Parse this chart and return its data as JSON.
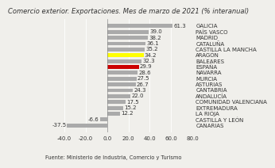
{
  "title": "Comercio exterior. Exportaciones. Mes de marzo de 2021 (% interanual)",
  "categories": [
    "GALICIA",
    "PAÍS VASCO",
    "MADRID",
    "CATALUÑA",
    "CASTILLA LA MANCHA",
    "ARAGÓN",
    "BALEARES",
    "ESPAÑA",
    "NAVARRA",
    "MURCIA",
    "ASTURIAS",
    "CANTABRIA",
    "ANDALUCÍA",
    "COMUNIDAD VALENCIANA",
    "EXTREMADURA",
    "LA RIOJA",
    "CASTILLA Y LEÓN",
    "CANARIAS"
  ],
  "values": [
    61.3,
    39.0,
    38.2,
    36.1,
    35.2,
    34.2,
    32.3,
    29.9,
    28.6,
    27.5,
    26.7,
    24.3,
    22.0,
    17.5,
    15.2,
    12.2,
    -6.6,
    -37.5
  ],
  "bar_colors": [
    "#aaaaaa",
    "#aaaaaa",
    "#aaaaaa",
    "#aaaaaa",
    "#aaaaaa",
    "#ffff00",
    "#aaaaaa",
    "#cc0000",
    "#aaaaaa",
    "#aaaaaa",
    "#aaaaaa",
    "#aaaaaa",
    "#aaaaaa",
    "#aaaaaa",
    "#aaaaaa",
    "#aaaaaa",
    "#aaaaaa",
    "#aaaaaa"
  ],
  "xlim": [
    -40.0,
    80.0
  ],
  "xticks": [
    -40.0,
    -20.0,
    0.0,
    20.0,
    40.0,
    60.0,
    80.0
  ],
  "source": "Fuente: Ministerio de Industria, Comercio y Turismo",
  "title_fontsize": 6.0,
  "label_fontsize": 5.0,
  "tick_fontsize": 5.0,
  "source_fontsize": 4.8,
  "background_color": "#f0efeb"
}
